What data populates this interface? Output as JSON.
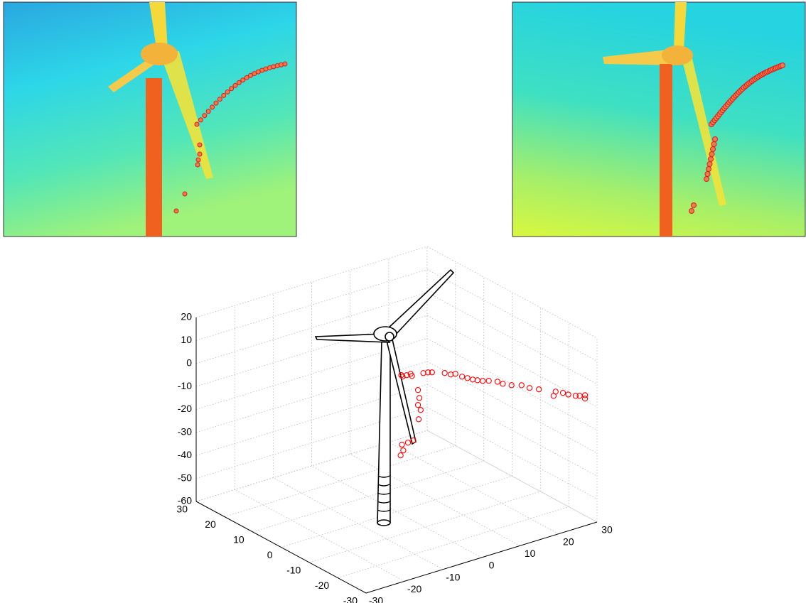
{
  "chart_data": {
    "type": "scatter3d",
    "xlim": [
      -30,
      30
    ],
    "ylim": [
      -30,
      30
    ],
    "zlim": [
      -60,
      20
    ],
    "xticks": [
      -30,
      -20,
      -10,
      0,
      10,
      20,
      30
    ],
    "yticks": [
      -30,
      -20,
      -10,
      0,
      10,
      20,
      30
    ],
    "zticks": [
      -60,
      -50,
      -40,
      -30,
      -20,
      -10,
      0,
      10,
      20
    ],
    "grid": true,
    "series": [
      {
        "color": "#ff0000",
        "x": [
          0.7,
          1.5,
          2.1,
          2.3,
          0.9,
          3.2,
          3.4,
          3.2,
          3.6,
          3.3,
          2.5,
          1.7,
          0.8,
          1.0,
          0.6,
          4.0,
          4.7,
          5.3,
          7.2,
          8.1,
          8.8,
          9.8,
          10.6,
          11.4,
          12.1,
          12.9,
          13.8,
          15.1,
          15.9,
          17.2,
          18.7,
          19.9,
          21.3,
          23.5,
          23.8,
          24.9,
          25.7,
          26.8,
          27.4,
          28.2,
          28.2
        ],
        "y": [
          -0.7,
          -1.5,
          -2.1,
          -2.3,
          -0.9,
          -3.2,
          -3.4,
          -3.2,
          -3.6,
          -3.3,
          -2.5,
          -1.7,
          -0.8,
          -1.0,
          -0.6,
          -4.0,
          -4.7,
          -5.3,
          -7.2,
          -8.1,
          -8.8,
          -9.8,
          -10.6,
          -11.4,
          -12.1,
          -12.9,
          -13.8,
          -15.1,
          -15.9,
          -17.2,
          -18.7,
          -19.9,
          -21.3,
          -23.5,
          -23.8,
          -24.9,
          -25.7,
          -26.8,
          -27.4,
          -28.2,
          -28.2
        ],
        "z": [
          -0.5,
          -0.4,
          0.3,
          -0.6,
          -1.1,
          -6.6,
          -10.0,
          -13.1,
          -15.2,
          -19.3,
          -28.6,
          -29.7,
          -30.7,
          -33.2,
          -35.4,
          0.9,
          1.3,
          1.4,
          1.4,
          0.9,
          1.3,
          0.2,
          -0.3,
          -0.8,
          -1.0,
          -1.2,
          -1.0,
          -1.2,
          -2.0,
          -2.4,
          -2.2,
          -3.2,
          -3.6,
          -6.1,
          -4.2,
          -4.6,
          -5.2,
          -5.6,
          -5.5,
          -5.1,
          -6.6
        ]
      }
    ]
  }
}
